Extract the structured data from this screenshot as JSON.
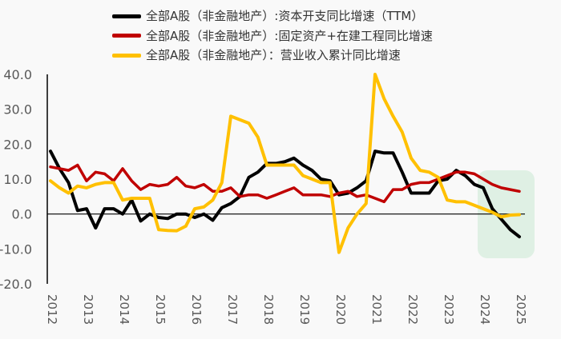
{
  "chart_data": {
    "type": "line",
    "title": "",
    "xlabel": "",
    "ylabel": "",
    "ylim": [
      -20,
      40
    ],
    "yticks": [
      "40.0",
      "30.0",
      "20.0",
      "10.0",
      "0.0",
      "-10.0",
      "-20.0"
    ],
    "xticks": [
      "2012",
      "2013",
      "2014",
      "2015",
      "2016",
      "2017",
      "2018",
      "2019",
      "2020",
      "2021",
      "2022",
      "2023",
      "2024",
      "2025"
    ],
    "x_frequency": "quarterly, 2012Q1–2025Q1",
    "legend_position": "top",
    "highlight": {
      "from": "2024Q1",
      "to": "2025Q1",
      "color": "#dff0e4"
    },
    "series": [
      {
        "name": "全部A股（非金融地产）:资本开支同比增速（TTM）",
        "color": "#000000",
        "values": [
          18,
          13,
          9,
          1,
          1.5,
          -4,
          1.5,
          1.5,
          0,
          4,
          -2,
          0,
          -1,
          -1.3,
          0,
          0,
          -1,
          0,
          -1.8,
          1.8,
          3,
          5,
          10.5,
          12,
          14.5,
          14.5,
          15,
          16,
          14,
          12.5,
          10,
          9.5,
          5.5,
          6,
          7.5,
          9.5,
          18,
          17.5,
          17.5,
          12,
          6,
          6,
          6,
          9.5,
          10,
          12.5,
          11,
          8.5,
          7.5,
          1.5,
          -1.5,
          -4.5,
          -6.5
        ]
      },
      {
        "name": "全部A股（非金融地产）:固定资产+在建工程同比增速",
        "color": "#c00000",
        "values": [
          13.5,
          13,
          12.5,
          14,
          9.5,
          12,
          11.5,
          9.5,
          13,
          9.5,
          7,
          8.5,
          8,
          8.5,
          10.5,
          8,
          7.5,
          8.5,
          6.5,
          6.5,
          7.5,
          5,
          5.5,
          5.5,
          4.5,
          5.5,
          6.5,
          7.5,
          5.5,
          5.5,
          5.5,
          5,
          6,
          6.5,
          5,
          5.5,
          4.5,
          3.5,
          7,
          7,
          8.5,
          9,
          9,
          10,
          11,
          12,
          12,
          11.5,
          10,
          8.5,
          7.5,
          7,
          6.5
        ]
      },
      {
        "name": "全部A股（非金融地产）：营业收入累计同比增速",
        "color": "#ffc000",
        "values": [
          9.5,
          7.5,
          6,
          8,
          7.5,
          8.5,
          9,
          9,
          4,
          4.5,
          4.5,
          4.5,
          -4.5,
          -4.7,
          -4.8,
          -3.5,
          1.5,
          2,
          4,
          9,
          28,
          27,
          26,
          22,
          14,
          14,
          14,
          14,
          11,
          10,
          9,
          9,
          -11,
          -4,
          0,
          3,
          40,
          33,
          28,
          23.5,
          16,
          12.5,
          12,
          10.5,
          4,
          3.5,
          3.5,
          2.5,
          1.5,
          0.5,
          -0.8,
          -0.3,
          -0.2
        ]
      }
    ]
  }
}
